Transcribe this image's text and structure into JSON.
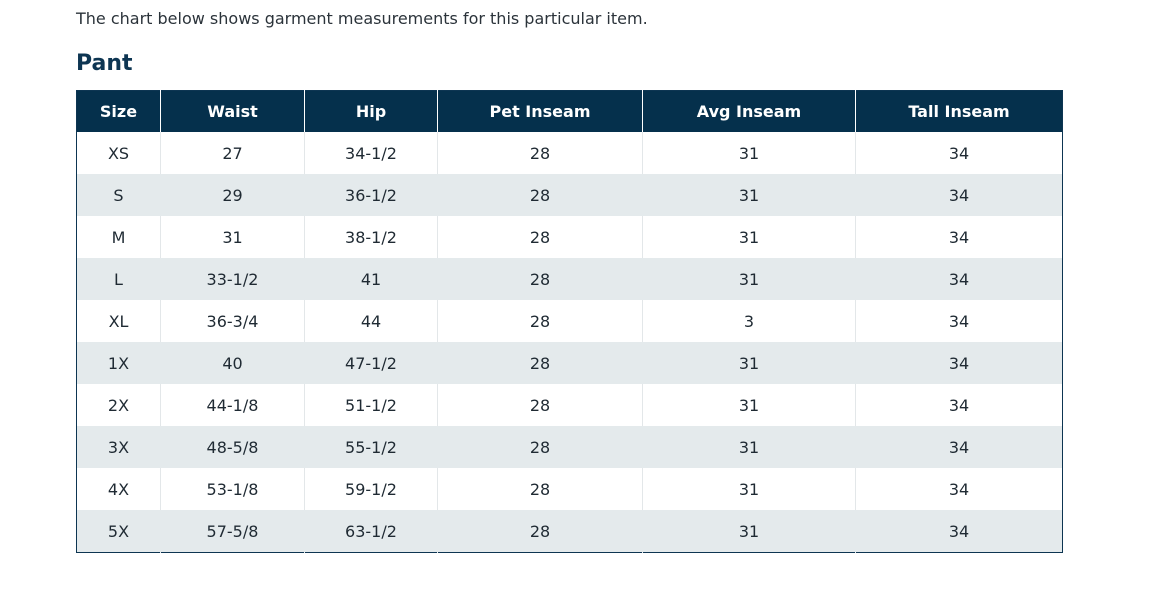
{
  "intro_text": "The chart below shows garment measurements for this particular item.",
  "section_title": "Pant",
  "table": {
    "headers": [
      "Size",
      "Waist",
      "Hip",
      "Pet Inseam",
      "Avg Inseam",
      "Tall Inseam"
    ],
    "rows": [
      [
        "XS",
        "27",
        "34-1/2",
        "28",
        "31",
        "34"
      ],
      [
        "S",
        "29",
        "36-1/2",
        "28",
        "31",
        "34"
      ],
      [
        "M",
        "31",
        "38-1/2",
        "28",
        "31",
        "34"
      ],
      [
        "L",
        "33-1/2",
        "41",
        "28",
        "31",
        "34"
      ],
      [
        "XL",
        "36-3/4",
        "44",
        "28",
        "3",
        "34"
      ],
      [
        "1X",
        "40",
        "47-1/2",
        "28",
        "31",
        "34"
      ],
      [
        "2X",
        "44-1/8",
        "51-1/2",
        "28",
        "31",
        "34"
      ],
      [
        "3X",
        "48-5/8",
        "55-1/2",
        "28",
        "31",
        "34"
      ],
      [
        "4X",
        "53-1/8",
        "59-1/2",
        "28",
        "31",
        "34"
      ],
      [
        "5X",
        "57-5/8",
        "63-1/2",
        "28",
        "31",
        "34"
      ]
    ]
  },
  "colors": {
    "header_bg": "#05304c",
    "title": "#0d3552",
    "stripe": "#e4eaec"
  }
}
